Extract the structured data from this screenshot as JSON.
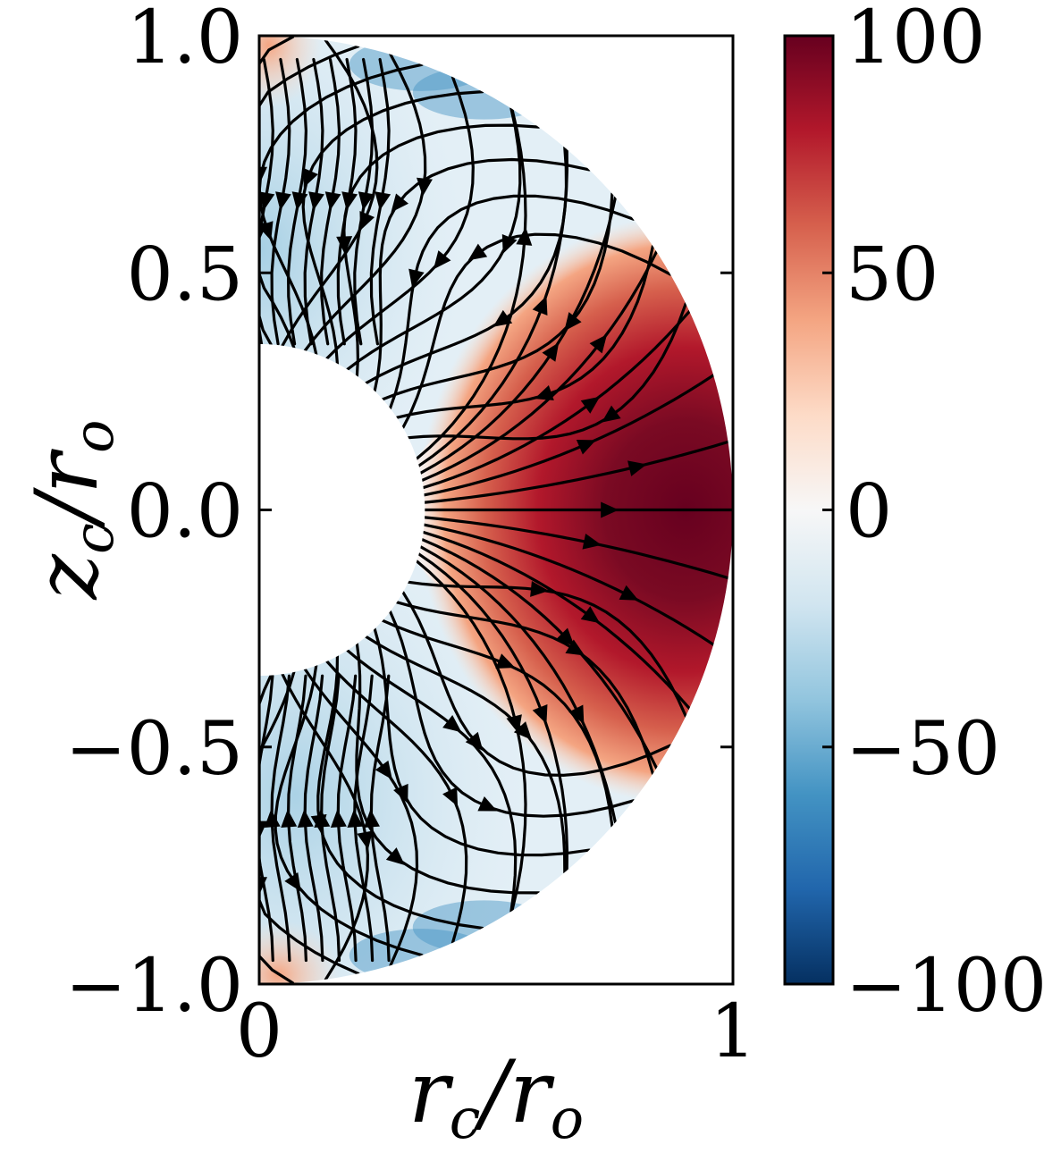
{
  "chart_data": {
    "type": "heatmap",
    "title": "",
    "xlabel": {
      "main": "r",
      "sub": "c",
      "sep": "/",
      "main2": "r",
      "sub2": "o"
    },
    "ylabel": {
      "main": "z",
      "sub": "c",
      "sep": "/",
      "main2": "r",
      "sub2": "o"
    },
    "xlim": [
      0,
      1
    ],
    "ylim": [
      -1.0,
      1.0
    ],
    "x_ticks": [
      0,
      1
    ],
    "x_tick_labels": [
      "0",
      "1"
    ],
    "y_ticks": [
      1.0,
      0.5,
      0.0,
      -0.5,
      -1.0
    ],
    "y_tick_labels": [
      "1.0",
      "0.5",
      "0.0",
      "−0.5",
      "−1.0"
    ],
    "domain": {
      "shape": "spherical shell meridional half",
      "inner_radius": 0.35,
      "outer_radius": 1.0
    },
    "colorbar": {
      "range": [
        -100,
        100
      ],
      "ticks": [
        100,
        50,
        0,
        -50,
        -100
      ],
      "tick_labels": [
        "100",
        "50",
        "0",
        "−50",
        "−100"
      ],
      "colormap": "RdBu_r",
      "color_stops": [
        "#053061",
        "#2166ac",
        "#4393c3",
        "#92c5de",
        "#d1e5f0",
        "#f7f7f7",
        "#fddbc7",
        "#f4a582",
        "#d6604d",
        "#b2182b",
        "#67001f"
      ]
    },
    "field_features": [
      {
        "kind": "positive lobe",
        "center_r": 0.9,
        "center_z": 0.0,
        "peak": 100
      },
      {
        "kind": "negative band",
        "region": "high latitudes north",
        "level": -25
      },
      {
        "kind": "negative band",
        "region": "high latitudes south",
        "level": -25
      },
      {
        "kind": "negative rim",
        "region": "outer boundary near poles",
        "level": -60
      },
      {
        "kind": "positive spot",
        "region": "axis near poles",
        "level": 30
      }
    ],
    "overlay": "streamlines with arrowheads",
    "grid": false
  }
}
